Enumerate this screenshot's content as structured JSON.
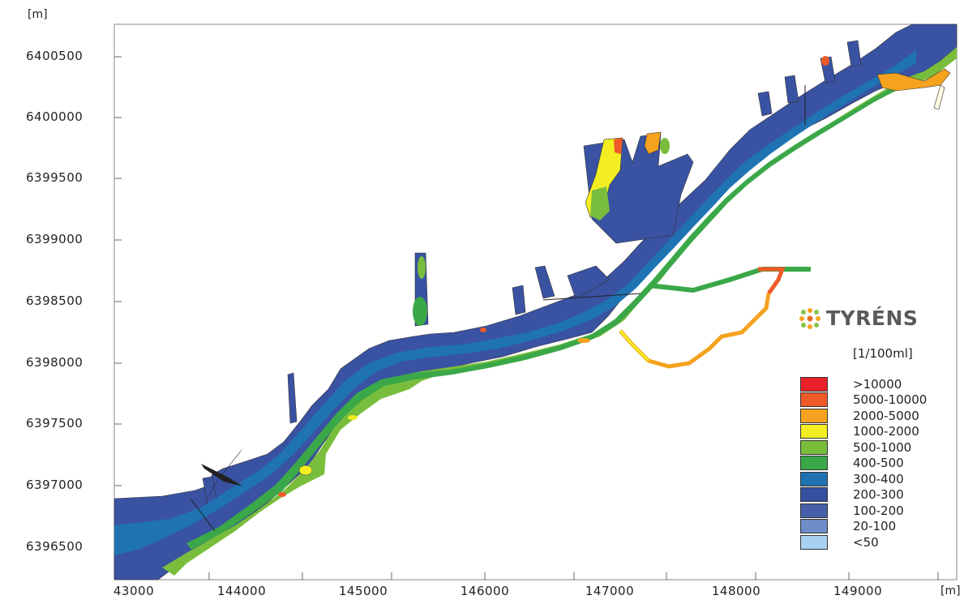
{
  "axes": {
    "y_unit": "[m]",
    "x_unit": "[m]",
    "y_ticks": [
      "6400500",
      "6400000",
      "6399500",
      "6399000",
      "6398500",
      "6398000",
      "6397500",
      "6397000",
      "6396500"
    ],
    "x_ticks": [
      "43000",
      "144000",
      "145000",
      "146000",
      "147000",
      "148000",
      "149000"
    ]
  },
  "logo": {
    "text": "TYRÉNS"
  },
  "legend": {
    "unit": "[1/100ml]",
    "items": [
      {
        "label": ">10000",
        "color": "#e8202a"
      },
      {
        "label": "5000-10000",
        "color": "#ee5a28"
      },
      {
        "label": "2000-5000",
        "color": "#f5a21e"
      },
      {
        "label": "1000-2000",
        "color": "#f2ee22"
      },
      {
        "label": "500-1000",
        "color": "#78be3c"
      },
      {
        "label": "400-500",
        "color": "#3aa848"
      },
      {
        "label": "300-400",
        "color": "#1e72b0"
      },
      {
        "label": "200-300",
        "color": "#3650a0"
      },
      {
        "label": "100-200",
        "color": "#4560a8"
      },
      {
        "label": "20-100",
        "color": "#6e8cc8"
      },
      {
        "label": "<50",
        "color": "#a8d0f0"
      }
    ]
  },
  "colors": {
    "water_deep": "#3a52a2",
    "channel": "#1f73b3",
    "shore_green": "#78be3c",
    "mid_green": "#3aa848",
    "yellow": "#f2ee22",
    "orange": "#f5a21e",
    "red": "#e8202a"
  }
}
